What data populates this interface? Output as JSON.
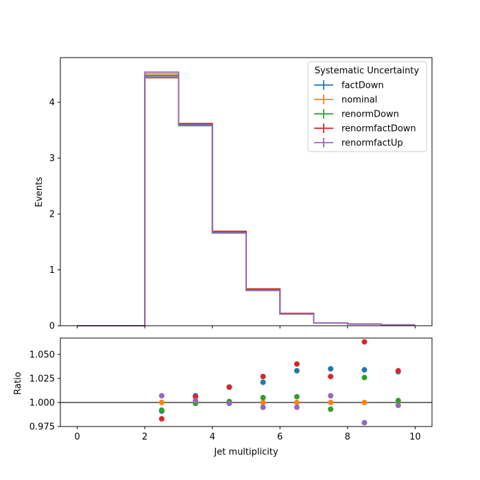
{
  "chart_data": {
    "type": "step",
    "xlabel": "Jet multiplicity",
    "legend": {
      "title": "Systematic Uncertainty",
      "placement": "top-right"
    },
    "bin_edges": [
      0,
      1,
      2,
      3,
      4,
      5,
      6,
      7,
      8,
      9,
      10
    ],
    "series": [
      {
        "name": "factDown",
        "color": "#1f77b4",
        "values": [
          0,
          0,
          4.47,
          3.61,
          1.68,
          0.65,
          0.22,
          0.05,
          0.03,
          0.015
        ],
        "ratio": [
          null,
          null,
          0.991,
          1.007,
          1.016,
          1.021,
          1.033,
          1.035,
          1.034,
          1.032
        ]
      },
      {
        "name": "nominal",
        "color": "#ff7f0e",
        "values": [
          0,
          0,
          4.51,
          3.59,
          1.66,
          0.64,
          0.21,
          0.05,
          0.029,
          0.014
        ],
        "ratio": [
          null,
          null,
          1.0,
          1.0,
          1.0,
          1.0,
          1.0,
          1.0,
          1.0,
          1.0
        ]
      },
      {
        "name": "renormDown",
        "color": "#2ca02c",
        "values": [
          0,
          0,
          4.48,
          3.58,
          1.66,
          0.64,
          0.21,
          0.05,
          0.03,
          0.014
        ],
        "ratio": [
          null,
          null,
          0.992,
          0.999,
          1.001,
          1.005,
          1.006,
          0.993,
          1.026,
          1.002
        ]
      },
      {
        "name": "renormfactDown",
        "color": "#d62728",
        "values": [
          0,
          0,
          4.44,
          3.62,
          1.69,
          0.66,
          0.22,
          0.05,
          0.031,
          0.015
        ],
        "ratio": [
          null,
          null,
          0.983,
          1.006,
          1.016,
          1.027,
          1.04,
          1.027,
          1.063,
          1.033
        ]
      },
      {
        "name": "renormfactUp",
        "color": "#9467bd",
        "values": [
          0,
          0,
          4.54,
          3.59,
          1.66,
          0.63,
          0.21,
          0.05,
          0.028,
          0.014
        ],
        "ratio": [
          null,
          null,
          1.007,
          1.002,
          0.999,
          0.995,
          0.995,
          1.007,
          0.979,
          0.997
        ]
      }
    ],
    "top_panel": {
      "ylabel": "Events",
      "ylim": [
        0,
        4.8
      ],
      "yticks": [
        0,
        1,
        2,
        3,
        4
      ],
      "ytick_labels": [
        "0",
        "1",
        "2",
        "3",
        "4"
      ]
    },
    "bottom_panel": {
      "ylabel": "Ratio",
      "ylim": [
        0.975,
        1.067
      ],
      "yticks": [
        0.975,
        1.0,
        1.025,
        1.05
      ],
      "ytick_labels": [
        "0.975",
        "1.000",
        "1.025",
        "1.050"
      ],
      "reference_line": 1.0
    },
    "xlim": [
      -0.5,
      10.5
    ],
    "xticks": [
      0,
      2,
      4,
      6,
      8,
      10
    ],
    "xtick_labels": [
      "0",
      "2",
      "4",
      "6",
      "8",
      "10"
    ],
    "grid": false
  }
}
